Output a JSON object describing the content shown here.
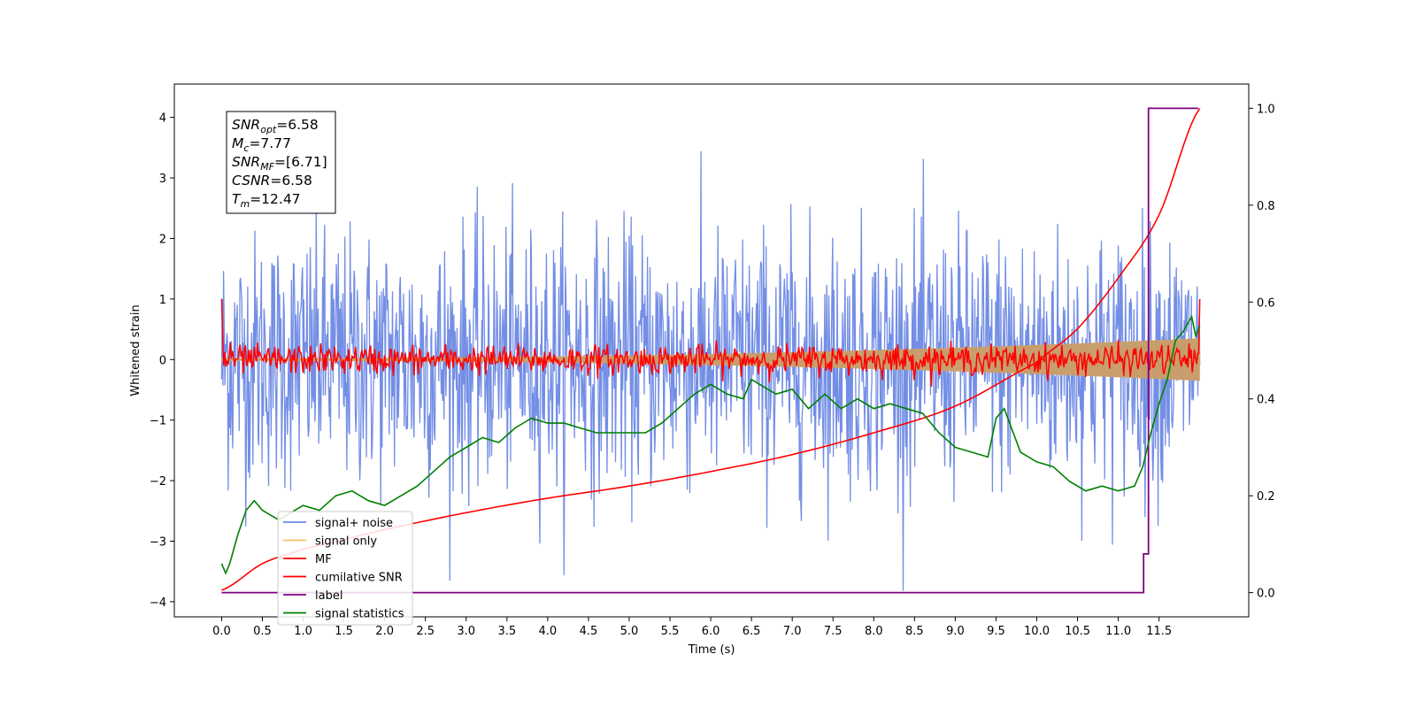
{
  "chart_data": {
    "type": "line",
    "xlabel": "Time (s)",
    "ylabel": "Whitened strain",
    "xlim": [
      -0.58,
      12.6
    ],
    "ylim": [
      -4.25,
      4.55
    ],
    "y2lim": [
      -0.05,
      1.05
    ],
    "x_ticks": [
      0.0,
      0.5,
      1.0,
      1.5,
      2.0,
      2.5,
      3.0,
      3.5,
      4.0,
      4.5,
      5.0,
      5.5,
      6.0,
      6.5,
      7.0,
      7.5,
      8.0,
      8.5,
      9.0,
      9.5,
      10.0,
      10.5,
      11.0,
      11.5
    ],
    "x_tick_labels": [
      "0.0",
      "0.5",
      "1.0",
      "1.5",
      "2.0",
      "2.5",
      "3.0",
      "3.5",
      "4.0",
      "4.5",
      "5.0",
      "5.5",
      "6.0",
      "6.5",
      "7.0",
      "7.5",
      "8.0",
      "8.5",
      "9.0",
      "9.5",
      "10.0",
      "10.5",
      "11.0",
      "11.5"
    ],
    "y_ticks": [
      4,
      3,
      2,
      1,
      0,
      -1,
      -2,
      -3,
      -4
    ],
    "y_tick_labels": [
      "4",
      "3",
      "2",
      "1",
      "0",
      "−1",
      "−2",
      "−3",
      "−4"
    ],
    "y2_ticks": [
      1.0,
      0.8,
      0.6,
      0.4,
      0.2,
      0.0
    ],
    "y2_tick_labels": [
      "1.0",
      "0.8",
      "0.6",
      "0.4",
      "0.2",
      "0.0"
    ],
    "info_box": [
      {
        "base": "SNR",
        "sub": "opt",
        "value": "=6.58"
      },
      {
        "base": "M",
        "sub": "c",
        "value": "=7.77"
      },
      {
        "base": "SNR",
        "sub": "MF",
        "value": "=[6.71]"
      },
      {
        "base": "CSNR",
        "sub": "",
        "value": "=6.58"
      },
      {
        "base": "T",
        "sub": "m",
        "value": "=12.47"
      }
    ],
    "legend_placement": "lower-left",
    "legend": [
      {
        "label": "signal+ noise",
        "color": "#6b88e4"
      },
      {
        "label": "signal only",
        "color": "#f4c36a"
      },
      {
        "label": "MF",
        "color": "#ff0000"
      },
      {
        "label": "cumilative SNR",
        "color": "#ff0000"
      },
      {
        "label": "label",
        "color": "#800080"
      },
      {
        "label": "signal statistics",
        "color": "#008000"
      }
    ],
    "series": [
      {
        "name": "signal+ noise",
        "axis": "left",
        "color": "#6b88e4",
        "style": "dense noise trace",
        "x_range": [
          0.0,
          12.0
        ],
        "mean": 0.0,
        "std": 1.0,
        "y_max": 4.15,
        "y_min": -3.82
      },
      {
        "name": "signal only",
        "axis": "left",
        "color": "#f4c36a",
        "style": "chirp envelope",
        "x_range": [
          0.0,
          12.0
        ],
        "amplitude_start": 0.02,
        "amplitude_end": 0.35
      },
      {
        "name": "MF",
        "axis": "left",
        "color": "#ff0000",
        "style": "noisy trace",
        "x_range": [
          0.0,
          12.0
        ],
        "start_value": 1.0,
        "end_value": 1.0,
        "std": 0.12
      },
      {
        "name": "cumilative SNR",
        "axis": "right",
        "color": "#ff0000",
        "style": "line",
        "x": [
          0.0,
          0.5,
          1.0,
          2.0,
          3.0,
          4.0,
          5.0,
          6.0,
          7.0,
          8.0,
          9.0,
          10.0,
          10.5,
          11.0,
          11.5,
          12.0
        ],
        "y": [
          0.005,
          0.06,
          0.09,
          0.13,
          0.165,
          0.195,
          0.22,
          0.25,
          0.285,
          0.33,
          0.385,
          0.475,
          0.545,
          0.65,
          0.78,
          1.0
        ]
      },
      {
        "name": "label",
        "axis": "right",
        "color": "#800080",
        "style": "step",
        "x": [
          0.0,
          11.31,
          11.31,
          11.37,
          11.37,
          11.98
        ],
        "y": [
          0.0,
          0.0,
          0.08,
          0.08,
          1.0,
          1.0
        ]
      },
      {
        "name": "signal statistics",
        "axis": "right",
        "color": "#008000",
        "style": "line",
        "x": [
          0.0,
          0.05,
          0.1,
          0.2,
          0.3,
          0.4,
          0.5,
          0.6,
          0.7,
          0.8,
          0.9,
          1.0,
          1.2,
          1.4,
          1.6,
          1.8,
          2.0,
          2.2,
          2.4,
          2.6,
          2.8,
          3.0,
          3.2,
          3.4,
          3.6,
          3.8,
          4.0,
          4.2,
          4.4,
          4.6,
          4.8,
          5.0,
          5.2,
          5.4,
          5.6,
          5.8,
          6.0,
          6.2,
          6.4,
          6.5,
          6.6,
          6.8,
          7.0,
          7.2,
          7.4,
          7.6,
          7.8,
          8.0,
          8.2,
          8.4,
          8.6,
          8.8,
          9.0,
          9.2,
          9.4,
          9.5,
          9.6,
          9.8,
          10.0,
          10.2,
          10.4,
          10.6,
          10.8,
          11.0,
          11.2,
          11.3,
          11.4,
          11.5,
          11.6,
          11.7,
          11.8,
          11.9,
          11.95,
          12.0
        ],
        "y": [
          0.06,
          0.04,
          0.06,
          0.12,
          0.17,
          0.19,
          0.17,
          0.16,
          0.15,
          0.16,
          0.17,
          0.18,
          0.17,
          0.2,
          0.21,
          0.19,
          0.18,
          0.2,
          0.22,
          0.25,
          0.28,
          0.3,
          0.32,
          0.31,
          0.34,
          0.36,
          0.35,
          0.35,
          0.34,
          0.33,
          0.33,
          0.33,
          0.33,
          0.35,
          0.38,
          0.41,
          0.43,
          0.41,
          0.4,
          0.44,
          0.43,
          0.41,
          0.42,
          0.38,
          0.41,
          0.38,
          0.4,
          0.38,
          0.39,
          0.38,
          0.37,
          0.33,
          0.3,
          0.29,
          0.28,
          0.36,
          0.38,
          0.29,
          0.27,
          0.26,
          0.23,
          0.21,
          0.22,
          0.21,
          0.22,
          0.26,
          0.33,
          0.39,
          0.44,
          0.52,
          0.54,
          0.57,
          0.53,
          0.55
        ]
      }
    ]
  }
}
